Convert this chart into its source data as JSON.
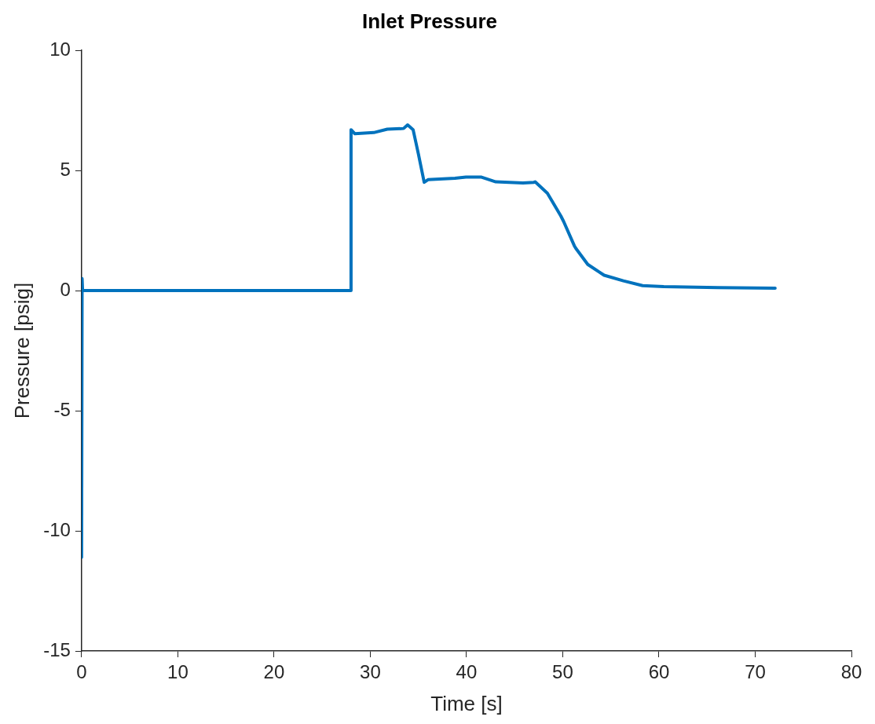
{
  "chart_data": {
    "type": "line",
    "title": "Inlet Pressure",
    "xlabel": "Time [s]",
    "ylabel": "Pressure [psig]",
    "xlim": [
      0,
      80
    ],
    "xticks": [
      0,
      10,
      20,
      30,
      40,
      50,
      60,
      70,
      80
    ],
    "ylim": [
      -15,
      10
    ],
    "yticks": [
      -15,
      -10,
      -5,
      0,
      5,
      10
    ],
    "grid": false,
    "legend": false,
    "marker": "none",
    "line_style": "solid",
    "series": [
      {
        "color": "#0072bd",
        "x": [
          0,
          0.05,
          0.1,
          5,
          10,
          15,
          20,
          25,
          27.97,
          28.0,
          28.4,
          30.36,
          31.77,
          33.46,
          33.88,
          34.45,
          35.0,
          35.6,
          36.0,
          38.8,
          39.94,
          41.5,
          43.04,
          45.86,
          47.0,
          47.13,
          48.4,
          49.8,
          50.09,
          51.2,
          51.36,
          52.6,
          54.3,
          56.3,
          58.3,
          60.5,
          66.1,
          72.07
        ],
        "values": [
          -11.1,
          0.5,
          0,
          0,
          0,
          0,
          0,
          0,
          0,
          6.7,
          6.53,
          6.58,
          6.72,
          6.75,
          6.9,
          6.7,
          5.69,
          4.51,
          4.62,
          4.68,
          4.73,
          4.73,
          4.53,
          4.48,
          4.51,
          4.53,
          4.06,
          3.11,
          2.88,
          1.87,
          1.76,
          1.09,
          0.64,
          0.41,
          0.21,
          0.17,
          0.13,
          0.1
        ]
      }
    ]
  }
}
